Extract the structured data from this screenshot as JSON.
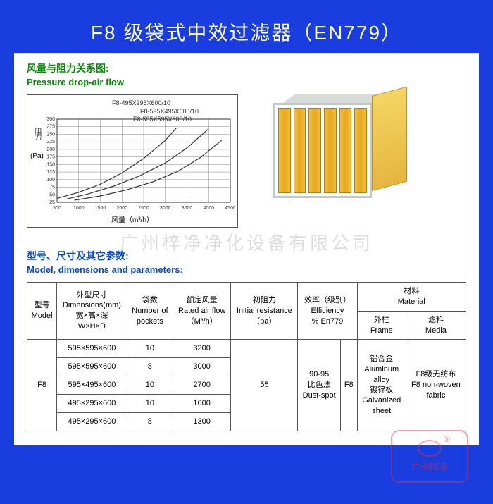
{
  "title": "F8 级袋式中效过滤器（EN779）",
  "section1": {
    "cn": "风量与阻力关系图:",
    "en": "Pressure drop-air flow"
  },
  "chart": {
    "type": "line",
    "y_label": "阻力",
    "y_unit": "(Pa)",
    "x_label": "风量（m³/h）",
    "x_min": 500,
    "x_max": 4500,
    "x_ticks": [
      500,
      1000,
      1500,
      2000,
      2500,
      3000,
      3500,
      4000,
      4500
    ],
    "y_min": 25,
    "y_max": 300,
    "y_ticks": [
      25,
      50,
      75,
      100,
      125,
      150,
      175,
      200,
      225,
      250,
      275,
      300
    ],
    "grid_color": "#888888",
    "line_color": "#333333",
    "series": [
      {
        "label": "F8-495X295X600/10",
        "pts": [
          [
            500,
            38
          ],
          [
            1000,
            58
          ],
          [
            1500,
            85
          ],
          [
            2000,
            122
          ],
          [
            2500,
            170
          ],
          [
            3000,
            230
          ],
          [
            3250,
            270
          ]
        ]
      },
      {
        "label": "F8-595X495X600/10",
        "pts": [
          [
            700,
            35
          ],
          [
            1200,
            52
          ],
          [
            1800,
            78
          ],
          [
            2400,
            112
          ],
          [
            3000,
            155
          ],
          [
            3500,
            205
          ],
          [
            4000,
            268
          ]
        ]
      },
      {
        "label": "F8-595X595X600/10",
        "pts": [
          [
            900,
            32
          ],
          [
            1500,
            46
          ],
          [
            2100,
            66
          ],
          [
            2700,
            92
          ],
          [
            3300,
            128
          ],
          [
            3800,
            172
          ],
          [
            4300,
            230
          ]
        ]
      }
    ]
  },
  "watermark": "广州梓净净化设备有限公司",
  "section2": {
    "cn": "型号、尺寸及其它参数:",
    "en": "Model, dimensions and parameters:"
  },
  "table": {
    "headers": {
      "model": {
        "cn": "型号",
        "en": "Model"
      },
      "dims": {
        "cn": "外型尺寸",
        "en1": "Dimensions(mm)",
        "en2": "宽×高×深",
        "en3": "W×H×D"
      },
      "pockets": {
        "cn": "袋数",
        "en": "Number of",
        "en2": "pockets"
      },
      "airflow": {
        "cn": "额定风量",
        "en": "Rated air flow",
        "en2": "（M³/h）"
      },
      "resist": {
        "cn": "初阻力",
        "en": "Initial resistance",
        "en2": "（pa）"
      },
      "eff": {
        "cn": "效率（级别）",
        "en": "Efficiency",
        "en2": "% En779"
      },
      "material": {
        "cn": "材料",
        "en": "Material"
      },
      "frame": {
        "cn": "外框",
        "en": "Frame"
      },
      "media": {
        "cn": "滤料",
        "en": "Media"
      }
    },
    "model_value": "F8",
    "rows": [
      {
        "dim": "595×595×600",
        "pockets": "10",
        "airflow": "3200"
      },
      {
        "dim": "595×595×600",
        "pockets": "8",
        "airflow": "3000"
      },
      {
        "dim": "595×495×600",
        "pockets": "10",
        "airflow": "2700"
      },
      {
        "dim": "495×295×600",
        "pockets": "10",
        "airflow": "1600"
      },
      {
        "dim": "495×295×600",
        "pockets": "8",
        "airflow": "1300"
      }
    ],
    "resist_value": "55",
    "eff_cn1": "90-95",
    "eff_cn2": "比色法",
    "eff_en": "Dust-spot",
    "eff_class": "F8",
    "frame_cn1": "铝合金",
    "frame_en1": "Aluminum",
    "frame_en1b": "alloy",
    "frame_cn2": "镀锌板",
    "frame_en2": "Galvanized",
    "frame_en2b": "sheet",
    "media_cn": "F8级无纺布",
    "media_en": "F8 non-woven",
    "media_en2": "fabric"
  },
  "stamp": {
    "brand": "广州梓净"
  }
}
